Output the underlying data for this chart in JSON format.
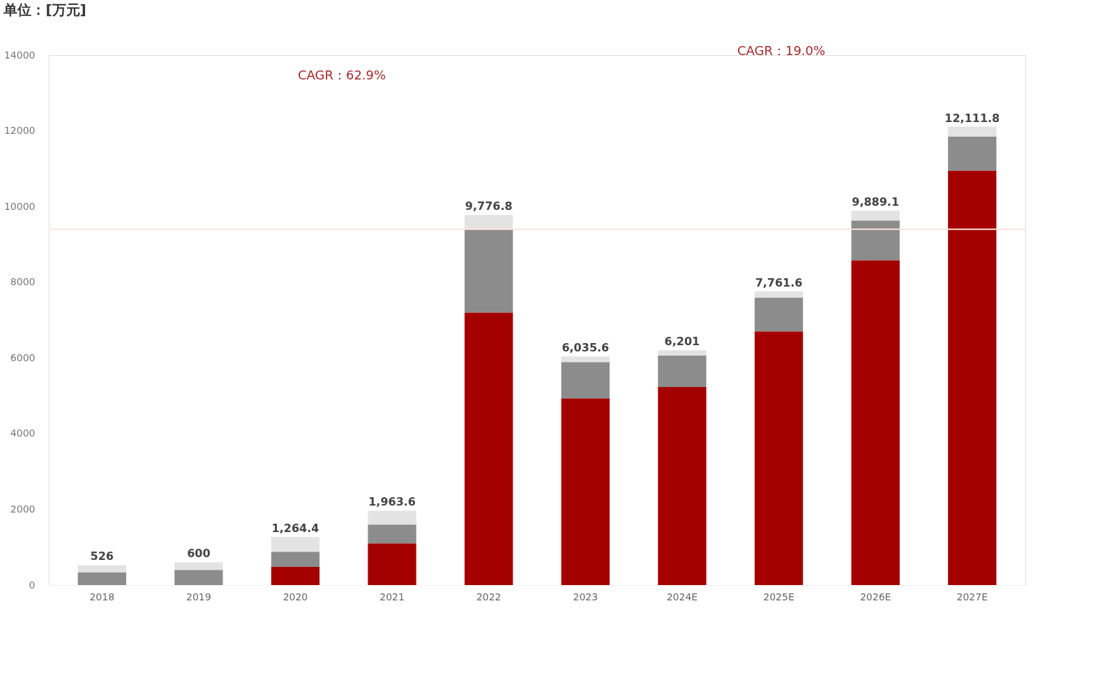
{
  "chart_data": {
    "type": "bar",
    "title": "单位：[万元]",
    "categories": [
      "2018",
      "2019",
      "2020",
      "2021",
      "2022",
      "2023",
      "2024E",
      "2025E",
      "2026E",
      "2027E"
    ],
    "stacked": true,
    "series": [
      {
        "color": "#a50000",
        "values": [
          0,
          0,
          480,
          1100,
          7200,
          4930,
          5230,
          6700,
          8580,
          10950
        ]
      },
      {
        "color": "#8c8c8c",
        "values": [
          330,
          400,
          400,
          500,
          2200,
          960,
          836,
          894.6,
          1050.4,
          899.8
        ]
      },
      {
        "color": "#e3e3e3",
        "values": [
          196,
          200,
          384.4,
          363.6,
          376.8,
          145.6,
          135,
          167,
          258.7,
          262
        ]
      }
    ],
    "totals": [
      "526",
      "600",
      "1,264.4",
      "1,963.6",
      "9,776.8",
      "6,035.6",
      "6,201",
      "7,761.6",
      "9,889.1",
      "12,111.8"
    ],
    "annotations": [
      "CAGR：62.9%",
      "CAGR：19.0%"
    ],
    "ylim": [
      0,
      14000
    ],
    "yticks": [
      0,
      2000,
      4000,
      6000,
      8000,
      10000,
      12000,
      14000
    ],
    "ref_lines": [
      {
        "axis": "y",
        "value": 9400,
        "color": "#fbe3d6"
      }
    ],
    "grid": false,
    "legend": false
  }
}
